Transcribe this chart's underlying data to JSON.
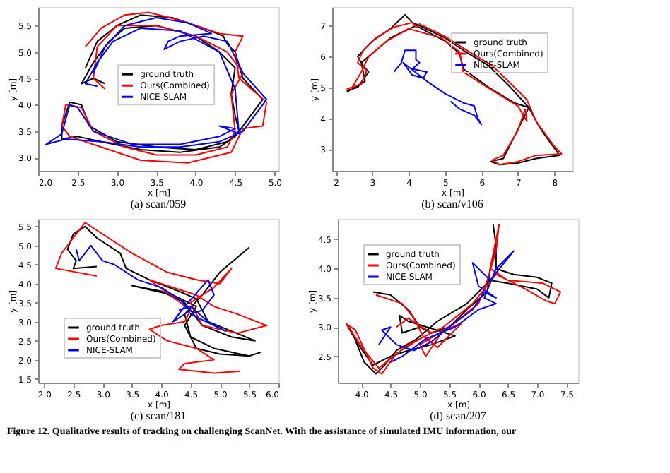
{
  "chart_data": [
    {
      "type": "line",
      "title": "(a) scan/059",
      "xlabel": "x [m]",
      "ylabel": "y [m]",
      "xlim": [
        2.0,
        5.05
      ],
      "ylim": [
        2.75,
        5.85
      ],
      "xticks": [
        {
          "value": 2,
          "label": "2.0"
        },
        2.5,
        {
          "value": 3,
          "label": "3.0"
        },
        3.5,
        {
          "value": 4,
          "label": "4.0"
        },
        4.5,
        {
          "value": 5,
          "label": "5.0"
        }
      ],
      "yticks": [
        {
          "value": 3,
          "label": "3.0"
        },
        3.5,
        {
          "value": 4,
          "label": "4.0"
        },
        4.5,
        {
          "value": 5,
          "label": "5.0"
        },
        5.5
      ],
      "legend": "center",
      "grid": false,
      "line_style": "solid",
      "series": [
        {
          "name": "ground truth",
          "color": "#000000",
          "x": [
            2.6,
            2.75,
            3.0,
            3.3,
            3.7,
            4.1,
            4.35,
            4.4,
            4.5,
            4.6,
            4.85,
            4.6,
            4.5,
            4.3,
            3.8,
            3.3,
            2.8,
            2.5,
            2.3,
            2.3,
            2.4,
            2.55,
            2.65,
            3.0,
            3.5,
            4.0,
            4.4,
            4.55,
            4.5,
            4.45,
            4.5,
            4.3,
            4.0,
            3.5,
            3.1,
            2.9,
            2.7,
            2.55,
            2.7,
            2.85
          ],
          "values": [
            4.7,
            5.2,
            5.5,
            5.7,
            5.65,
            5.45,
            5.3,
            5.15,
            5.0,
            4.5,
            4.1,
            3.6,
            3.4,
            3.2,
            3.1,
            3.15,
            3.3,
            3.4,
            3.35,
            3.6,
            4.05,
            4.0,
            3.6,
            3.3,
            3.2,
            3.15,
            3.3,
            3.5,
            3.8,
            4.2,
            4.7,
            5.0,
            5.3,
            5.5,
            5.45,
            5.2,
            4.8,
            4.4,
            4.5,
            4.4
          ]
        },
        {
          "name": "Ours(Combined)",
          "color": "#ff0000",
          "x": [
            2.6,
            2.8,
            3.1,
            3.4,
            3.8,
            4.3,
            4.6,
            4.5,
            4.55,
            4.9,
            4.85,
            4.6,
            4.45,
            3.9,
            3.3,
            2.8,
            2.4,
            2.3,
            2.35,
            2.55,
            2.7,
            3.1,
            3.5,
            4.0,
            4.4,
            4.5,
            4.45,
            4.6,
            4.4,
            4.0,
            3.5,
            3.0,
            2.75,
            2.7,
            2.85
          ],
          "values": [
            5.1,
            5.45,
            5.7,
            5.75,
            5.6,
            5.35,
            5.3,
            5.0,
            4.5,
            4.05,
            3.6,
            3.55,
            3.1,
            2.9,
            2.95,
            3.2,
            3.4,
            3.6,
            4.0,
            3.95,
            3.5,
            3.2,
            3.05,
            3.05,
            3.2,
            3.5,
            4.2,
            4.6,
            5.0,
            5.3,
            5.5,
            5.5,
            5.1,
            4.5,
            4.3
          ]
        },
        {
          "name": "NICE-SLAM",
          "color": "#0000ff",
          "x": [
            2.7,
            2.85,
            3.1,
            3.5,
            3.9,
            4.2,
            3.8,
            3.65,
            3.6,
            3.8,
            4.1,
            4.4,
            4.6,
            4.9,
            4.6,
            4.3,
            3.8,
            3.3,
            2.8,
            2.35,
            2.1,
            2.3,
            2.4,
            2.5,
            2.7,
            3.2,
            3.8,
            4.3,
            4.5,
            4.3,
            4.55,
            4.5,
            4.3,
            3.8,
            3.3,
            2.95,
            2.75,
            2.6,
            2.75
          ],
          "values": [
            4.6,
            5.1,
            5.5,
            5.65,
            5.55,
            5.35,
            5.3,
            5.2,
            5.05,
            5.2,
            5.3,
            5.2,
            4.6,
            4.1,
            3.5,
            3.3,
            3.2,
            3.2,
            3.3,
            3.35,
            3.25,
            3.45,
            4.0,
            3.95,
            3.5,
            3.25,
            3.25,
            3.4,
            3.55,
            3.6,
            3.45,
            4.3,
            5.0,
            5.4,
            5.45,
            5.2,
            4.8,
            4.4,
            4.35
          ]
        }
      ]
    },
    {
      "type": "line",
      "title": "(b) scan/v106",
      "xlabel": "x [m]",
      "ylabel": "y [m]",
      "xlim": [
        1.9,
        8.5
      ],
      "ylim": [
        2.3,
        7.6
      ],
      "xticks": [
        2,
        3,
        4,
        5,
        6,
        7,
        8
      ],
      "yticks": [
        3,
        4,
        5,
        6,
        7
      ],
      "legend": "top right",
      "grid": false,
      "line_style": "solid",
      "series": [
        {
          "name": "ground truth",
          "color": "#000000",
          "x": [
            2.3,
            2.6,
            2.9,
            2.75,
            2.6,
            3.0,
            3.5,
            3.9,
            4.1,
            4.3,
            5.0,
            5.5,
            6.2,
            6.8,
            7.3,
            7.6,
            7.9,
            8.15,
            7.5,
            7.0,
            6.5,
            6.25,
            6.6,
            6.9,
            7.3,
            6.9,
            6.2,
            5.5,
            5.4,
            5.0,
            4.2,
            3.5,
            3.0,
            2.7,
            2.8,
            2.3
          ],
          "values": [
            4.9,
            5.0,
            5.5,
            5.7,
            6.0,
            6.5,
            6.9,
            7.35,
            7.1,
            7.0,
            6.6,
            6.2,
            5.7,
            5.0,
            4.35,
            3.7,
            3.2,
            2.8,
            2.7,
            2.55,
            2.5,
            2.6,
            2.7,
            3.4,
            4.35,
            4.5,
            5.0,
            5.6,
            6.1,
            6.5,
            7.0,
            6.6,
            6.1,
            5.8,
            5.2,
            4.85
          ]
        },
        {
          "name": "Ours(Combined)",
          "color": "#ff0000",
          "x": [
            2.3,
            2.7,
            2.85,
            2.6,
            2.75,
            3.1,
            3.6,
            4.1,
            4.2,
            4.3,
            5.0,
            5.6,
            6.3,
            7.0,
            7.25,
            7.5,
            8.0,
            8.2,
            7.5,
            7.0,
            6.5,
            6.3,
            6.6,
            7.0,
            7.2,
            7.25,
            7.0,
            6.3,
            5.5,
            5.4,
            4.9,
            4.0,
            3.4,
            2.9,
            2.7,
            2.4
          ],
          "values": [
            4.95,
            5.1,
            5.55,
            5.8,
            6.2,
            6.6,
            6.95,
            7.1,
            6.95,
            7.05,
            6.65,
            6.2,
            5.7,
            4.9,
            4.6,
            3.9,
            3.1,
            2.85,
            2.8,
            2.6,
            2.5,
            2.65,
            2.8,
            3.6,
            4.3,
            3.9,
            4.4,
            4.9,
            5.5,
            6.15,
            6.6,
            6.9,
            6.5,
            6.0,
            5.5,
            4.9
          ]
        },
        {
          "name": "NICE-SLAM",
          "color": "#0000ff",
          "x": [
            3.6,
            3.8,
            3.9,
            4.2,
            4.2,
            4.3,
            4.1,
            4.5,
            4.4,
            4.1,
            3.85,
            4.5,
            5.0,
            5.5,
            5.8,
            5.9,
            6.0,
            5.8,
            5.4,
            5.15
          ],
          "values": [
            5.5,
            5.8,
            6.2,
            6.2,
            5.9,
            5.8,
            5.6,
            5.5,
            5.3,
            5.4,
            5.8,
            5.2,
            4.8,
            4.5,
            4.4,
            4.0,
            3.8,
            4.1,
            4.3,
            4.55
          ]
        }
      ]
    },
    {
      "type": "line",
      "title": "(c) scan/181",
      "xlabel": "x [m]",
      "ylabel": "y [m]",
      "xlim": [
        1.9,
        6.0
      ],
      "ylim": [
        1.4,
        5.7
      ],
      "xticks": [
        {
          "value": 2,
          "label": "2.0"
        },
        2.5,
        {
          "value": 3,
          "label": "3.0"
        },
        3.5,
        {
          "value": 4,
          "label": "4.0"
        },
        4.5,
        {
          "value": 5,
          "label": "5.0"
        },
        5.5,
        {
          "value": 6,
          "label": "6.0"
        }
      ],
      "yticks": [
        1.5,
        {
          "value": 2,
          "label": "2.0"
        },
        2.5,
        {
          "value": 3,
          "label": "3.0"
        },
        3.5,
        {
          "value": 4,
          "label": "4.0"
        },
        4.5,
        {
          "value": 5,
          "label": "5.0"
        },
        5.5
      ],
      "legend": "bottom left",
      "grid": false,
      "line_style": "solid",
      "series": [
        {
          "name": "ground truth",
          "color": "#000000",
          "x": [
            2.9,
            2.5,
            2.55,
            2.4,
            2.5,
            2.7,
            2.9,
            3.3,
            3.4,
            3.8,
            4.3,
            4.6,
            4.8,
            5.2,
            5.6,
            5.2,
            4.7,
            4.4,
            4.0,
            3.5,
            4.2,
            4.6,
            4.4,
            4.6,
            5.0,
            5.5,
            5.7,
            5.5,
            4.9,
            4.5,
            4.4,
            4.7,
            5.0,
            5.5
          ],
          "values": [
            4.45,
            4.4,
            4.6,
            4.9,
            5.3,
            5.5,
            5.2,
            4.8,
            4.4,
            4.1,
            3.8,
            3.6,
            3.0,
            2.75,
            2.5,
            2.6,
            2.9,
            3.5,
            3.8,
            3.95,
            3.7,
            3.4,
            2.9,
            2.3,
            2.15,
            2.1,
            2.2,
            2.1,
            2.3,
            2.6,
            3.2,
            3.7,
            4.3,
            4.95
          ]
        },
        {
          "name": "Ours(Combined)",
          "color": "#ff0000",
          "x": [
            2.9,
            2.2,
            2.3,
            2.5,
            2.7,
            3.1,
            3.5,
            4.1,
            4.6,
            5.0,
            5.2,
            4.9,
            4.5,
            4.7,
            5.3,
            5.8,
            5.3,
            4.9,
            4.6,
            3.8,
            4.5,
            4.4,
            4.0,
            3.8,
            4.1,
            4.6,
            4.9,
            4.4,
            4.3,
            4.9,
            5.35
          ],
          "values": [
            4.2,
            4.4,
            4.8,
            5.2,
            5.6,
            5.2,
            4.8,
            4.3,
            4.1,
            4.0,
            4.4,
            3.9,
            3.5,
            2.9,
            2.7,
            2.9,
            3.2,
            3.4,
            3.7,
            4.1,
            3.3,
            3.0,
            2.9,
            2.8,
            2.5,
            2.3,
            2.0,
            1.9,
            1.75,
            1.65,
            1.7
          ]
        },
        {
          "name": "NICE-SLAM",
          "color": "#0000ff",
          "x": [
            2.55,
            2.6,
            2.8,
            3.0,
            3.2,
            3.4,
            3.6,
            4.0,
            4.3,
            4.5,
            4.2,
            4.4,
            4.8,
            4.9,
            4.7,
            4.5,
            4.9,
            5.1,
            4.8,
            4.5,
            4.3
          ],
          "values": [
            4.9,
            4.6,
            5.0,
            4.6,
            4.5,
            4.3,
            4.1,
            3.9,
            3.6,
            3.3,
            3.0,
            3.4,
            4.1,
            3.7,
            3.3,
            3.2,
            2.9,
            2.75,
            3.0,
            3.4,
            3.3
          ]
        }
      ]
    },
    {
      "type": "line",
      "title": "(d) scan/207",
      "xlabel": "x [m]",
      "ylabel": "y [m]",
      "xlim": [
        3.6,
        7.7
      ],
      "ylim": [
        2.05,
        4.85
      ],
      "xticks": [
        {
          "value": 4,
          "label": "4.0"
        },
        4.5,
        {
          "value": 5,
          "label": "5.0"
        },
        5.5,
        {
          "value": 6,
          "label": "6.0"
        },
        6.5,
        {
          "value": 7,
          "label": "7.0"
        },
        7.5
      ],
      "yticks": [
        2.5,
        {
          "value": 3,
          "label": "3.0"
        },
        3.5,
        {
          "value": 4,
          "label": "4.0"
        },
        4.5
      ],
      "legend": "top left",
      "grid": false,
      "line_style": "solid",
      "annotations": [
        "Figure 12. Qualitative results of tracking on challenging ScanNet. With the assistance of simulated IMU information, our"
      ],
      "series": [
        {
          "name": "ground truth",
          "color": "#000000",
          "x": [
            4.2,
            4.5,
            4.8,
            5.0,
            5.2,
            5.5,
            5.8,
            6.15,
            6.2,
            6.3,
            6.25,
            6.3,
            6.3,
            6.6,
            7.0,
            7.25,
            7.2,
            7.0,
            6.5,
            6.2,
            5.8,
            5.3,
            4.95,
            4.6,
            4.4,
            4.25,
            4.05,
            3.85,
            3.75,
            3.95,
            4.2,
            4.5,
            4.8,
            5.2,
            5.6,
            4.8,
            4.65,
            4.7,
            5.0
          ],
          "values": [
            3.6,
            3.55,
            3.3,
            3.0,
            2.9,
            3.0,
            3.3,
            3.6,
            4.0,
            4.4,
            4.75,
            4.4,
            4.0,
            3.9,
            3.85,
            3.75,
            3.5,
            3.65,
            3.75,
            3.8,
            3.4,
            3.1,
            2.8,
            2.6,
            2.35,
            2.2,
            2.4,
            2.9,
            3.05,
            2.7,
            2.35,
            2.5,
            2.6,
            2.7,
            2.85,
            3.1,
            3.2,
            2.9,
            3.0
          ]
        },
        {
          "name": "Ours(Combined)",
          "color": "#ff0000",
          "x": [
            4.25,
            4.7,
            4.9,
            5.05,
            5.3,
            5.7,
            5.4,
            5.1,
            5.0,
            5.5,
            6.0,
            6.15,
            6.3,
            6.35,
            6.2,
            6.5,
            7.1,
            7.4,
            7.3,
            7.15,
            6.8,
            6.3,
            5.9,
            5.4,
            5.0,
            4.6,
            4.35,
            4.2,
            3.9,
            3.75,
            4.05,
            4.3,
            4.8,
            5.2,
            4.8,
            4.6
          ],
          "values": [
            3.55,
            3.4,
            3.15,
            2.85,
            2.65,
            3.05,
            2.95,
            2.5,
            2.7,
            3.0,
            3.4,
            3.8,
            4.3,
            4.75,
            4.0,
            3.8,
            3.75,
            3.6,
            3.4,
            3.45,
            3.65,
            3.9,
            3.4,
            3.0,
            2.8,
            2.55,
            2.2,
            2.3,
            2.95,
            3.05,
            2.6,
            2.3,
            2.7,
            2.9,
            3.15,
            3.0
          ]
        },
        {
          "name": "NICE-SLAM",
          "color": "#0000ff",
          "x": [
            4.3,
            4.5,
            4.35,
            4.6,
            4.9,
            5.2,
            5.5,
            5.9,
            6.1,
            6.3,
            6.0,
            5.9,
            6.2,
            6.6,
            6.3,
            6.1,
            6.3,
            6.0,
            5.6,
            5.1,
            4.7,
            4.5
          ],
          "values": [
            2.7,
            3.0,
            2.95,
            2.7,
            2.6,
            2.75,
            3.0,
            3.3,
            3.6,
            3.5,
            3.7,
            4.1,
            3.8,
            4.3,
            4.0,
            3.5,
            3.4,
            3.3,
            3.0,
            2.8,
            2.5,
            2.4
          ]
        }
      ]
    }
  ]
}
